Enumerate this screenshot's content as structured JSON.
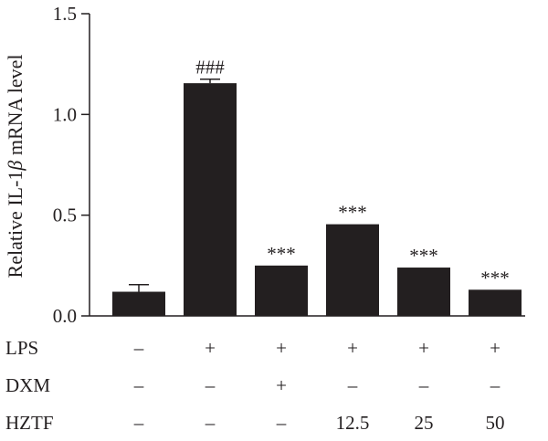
{
  "chart_data": {
    "type": "bar",
    "ylabel": "Relative IL-1β mRNA level",
    "ylabel_parts": {
      "before": "Relative IL-1",
      "symbol": "β",
      "after": " mRNA level"
    },
    "ylim": [
      0,
      1.5
    ],
    "yticks": [
      0.0,
      0.5,
      1.0,
      1.5
    ],
    "ytick_labels": [
      "0.0",
      "0.5",
      "1.0",
      "1.5"
    ],
    "grid": false,
    "bar_color": "#231f20",
    "categories": [
      "1",
      "2",
      "3",
      "4",
      "5",
      "6"
    ],
    "values": [
      0.12,
      1.155,
      0.25,
      0.455,
      0.24,
      0.13
    ],
    "error": [
      0.035,
      0.02,
      0,
      0,
      0,
      0
    ],
    "annotations": [
      "",
      "###",
      "***",
      "***",
      "***",
      "***"
    ],
    "condition_rows": [
      {
        "label": "LPS",
        "values": [
          "–",
          "+",
          "+",
          "+",
          "+",
          "+"
        ]
      },
      {
        "label": "DXM",
        "values": [
          "–",
          "–",
          "+",
          "–",
          "–",
          "–"
        ]
      },
      {
        "label": "HZTF",
        "values": [
          "–",
          "–",
          "–",
          "12.5",
          "25",
          "50"
        ]
      }
    ]
  }
}
